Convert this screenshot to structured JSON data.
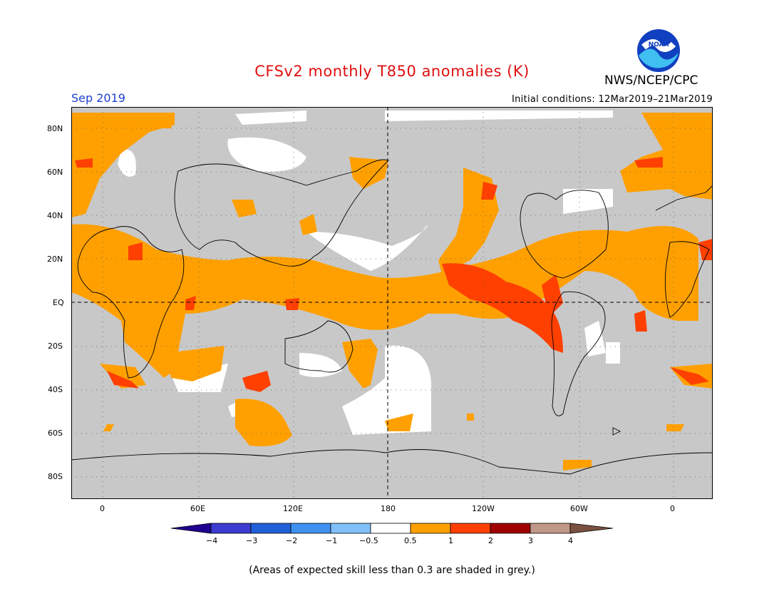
{
  "header": {
    "title": "CFSv2 monthly T850 anomalies (K)",
    "month": "Sep 2019",
    "organization": "NWS/NCEP/CPC",
    "initial_conditions": "Initial conditions: 12Mar2019–21Mar2019",
    "logo_text": "NOAA"
  },
  "map": {
    "lat_ticks": [
      "80N",
      "60N",
      "40N",
      "20N",
      "EQ",
      "20S",
      "40S",
      "60S",
      "80S"
    ],
    "lon_ticks": [
      "0",
      "60E",
      "120E",
      "180",
      "120W",
      "60W",
      "0"
    ],
    "skill_mask_color": "#c8c8c8",
    "colors": {
      "pos_05_1": "#ffa000",
      "pos_1_2": "#ff4000",
      "pos_2_3": "#a00000",
      "neutral": "#ffffff"
    }
  },
  "colorbar": {
    "labels": [
      "−4",
      "−3",
      "−2",
      "−1",
      "−0.5",
      "0.5",
      "1",
      "2",
      "3",
      "4"
    ],
    "colors": [
      "#200090",
      "#3c3cd0",
      "#2060d8",
      "#4090f0",
      "#80c0f8",
      "#ffffff",
      "#ffa000",
      "#ff4000",
      "#a00000",
      "#c09888",
      "#7a5040"
    ]
  },
  "footer": {
    "note": "(Areas of expected skill less than 0.3 are shaded in grey.)"
  }
}
